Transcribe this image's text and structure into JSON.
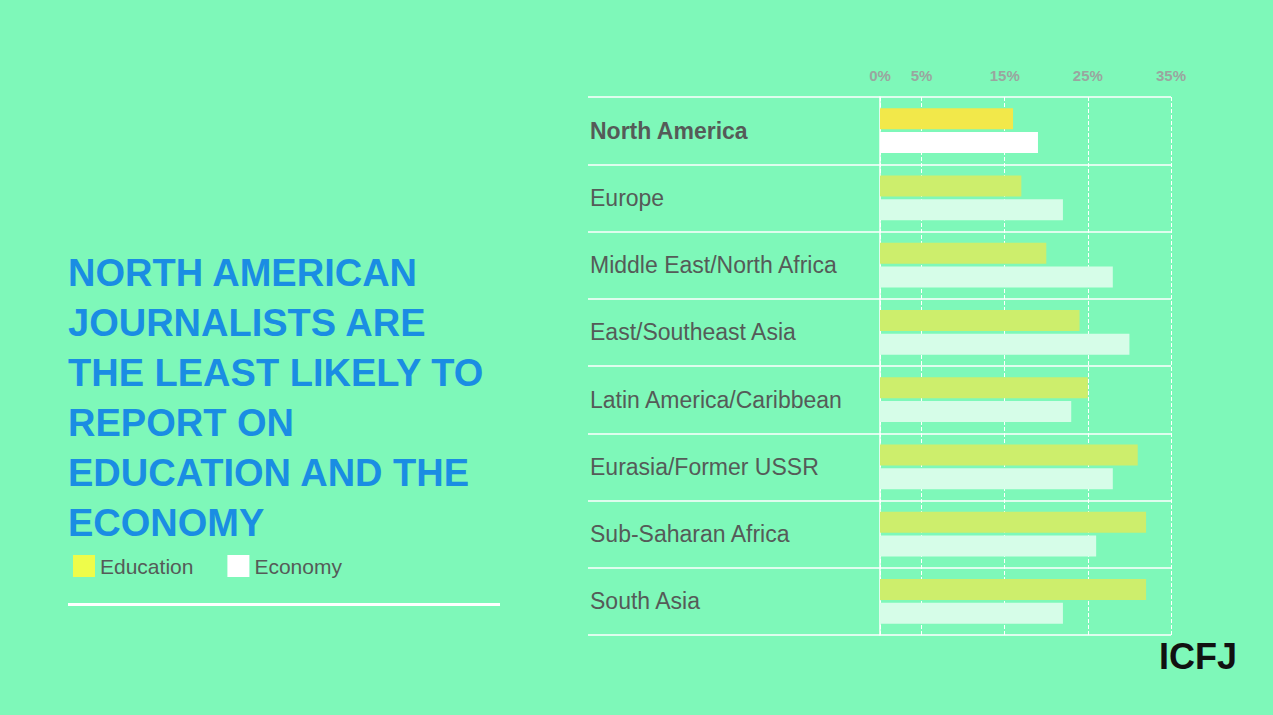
{
  "chart_data": {
    "type": "bar",
    "title": "NORTH AMERICAN JOURNALISTS ARE THE LEAST LIKELY TO REPORT ON EDUCATION AND THE ECONOMY",
    "orientation": "horizontal",
    "categories": [
      "North America",
      "Europe",
      "Middle East/North Africa",
      "East/Southeast Asia",
      "Latin America/Caribbean",
      "Eurasia/Former USSR",
      "Sub-Saharan Africa",
      "South Asia"
    ],
    "series": [
      {
        "name": "Education",
        "color": "#eefc4a",
        "colors": [
          "#f2e84a",
          "#cdee6c",
          "#cdee6c",
          "#cdee6c",
          "#cdee6c",
          "#cdee6c",
          "#cdee6c",
          "#cdee6c"
        ],
        "values": [
          16,
          17,
          20,
          24,
          25,
          31,
          32,
          32
        ]
      },
      {
        "name": "Economy",
        "color": "#ffffff",
        "colors": [
          "#ffffff",
          "#d6fde8",
          "#d6fde8",
          "#d6fde8",
          "#d6fde8",
          "#d6fde8",
          "#d6fde8",
          "#d6fde8"
        ],
        "values": [
          19,
          22,
          28,
          30,
          23,
          28,
          26,
          22
        ]
      }
    ],
    "xlim": [
      0,
      35
    ],
    "xticks": [
      {
        "value": 0,
        "label": "0%"
      },
      {
        "value": 5,
        "label": "5%"
      },
      {
        "value": 15,
        "label": "15%"
      },
      {
        "value": 25,
        "label": "25%"
      },
      {
        "value": 35,
        "label": "35%"
      }
    ],
    "grid": true,
    "legend": "left",
    "annotations": [
      "ICFJ"
    ]
  }
}
